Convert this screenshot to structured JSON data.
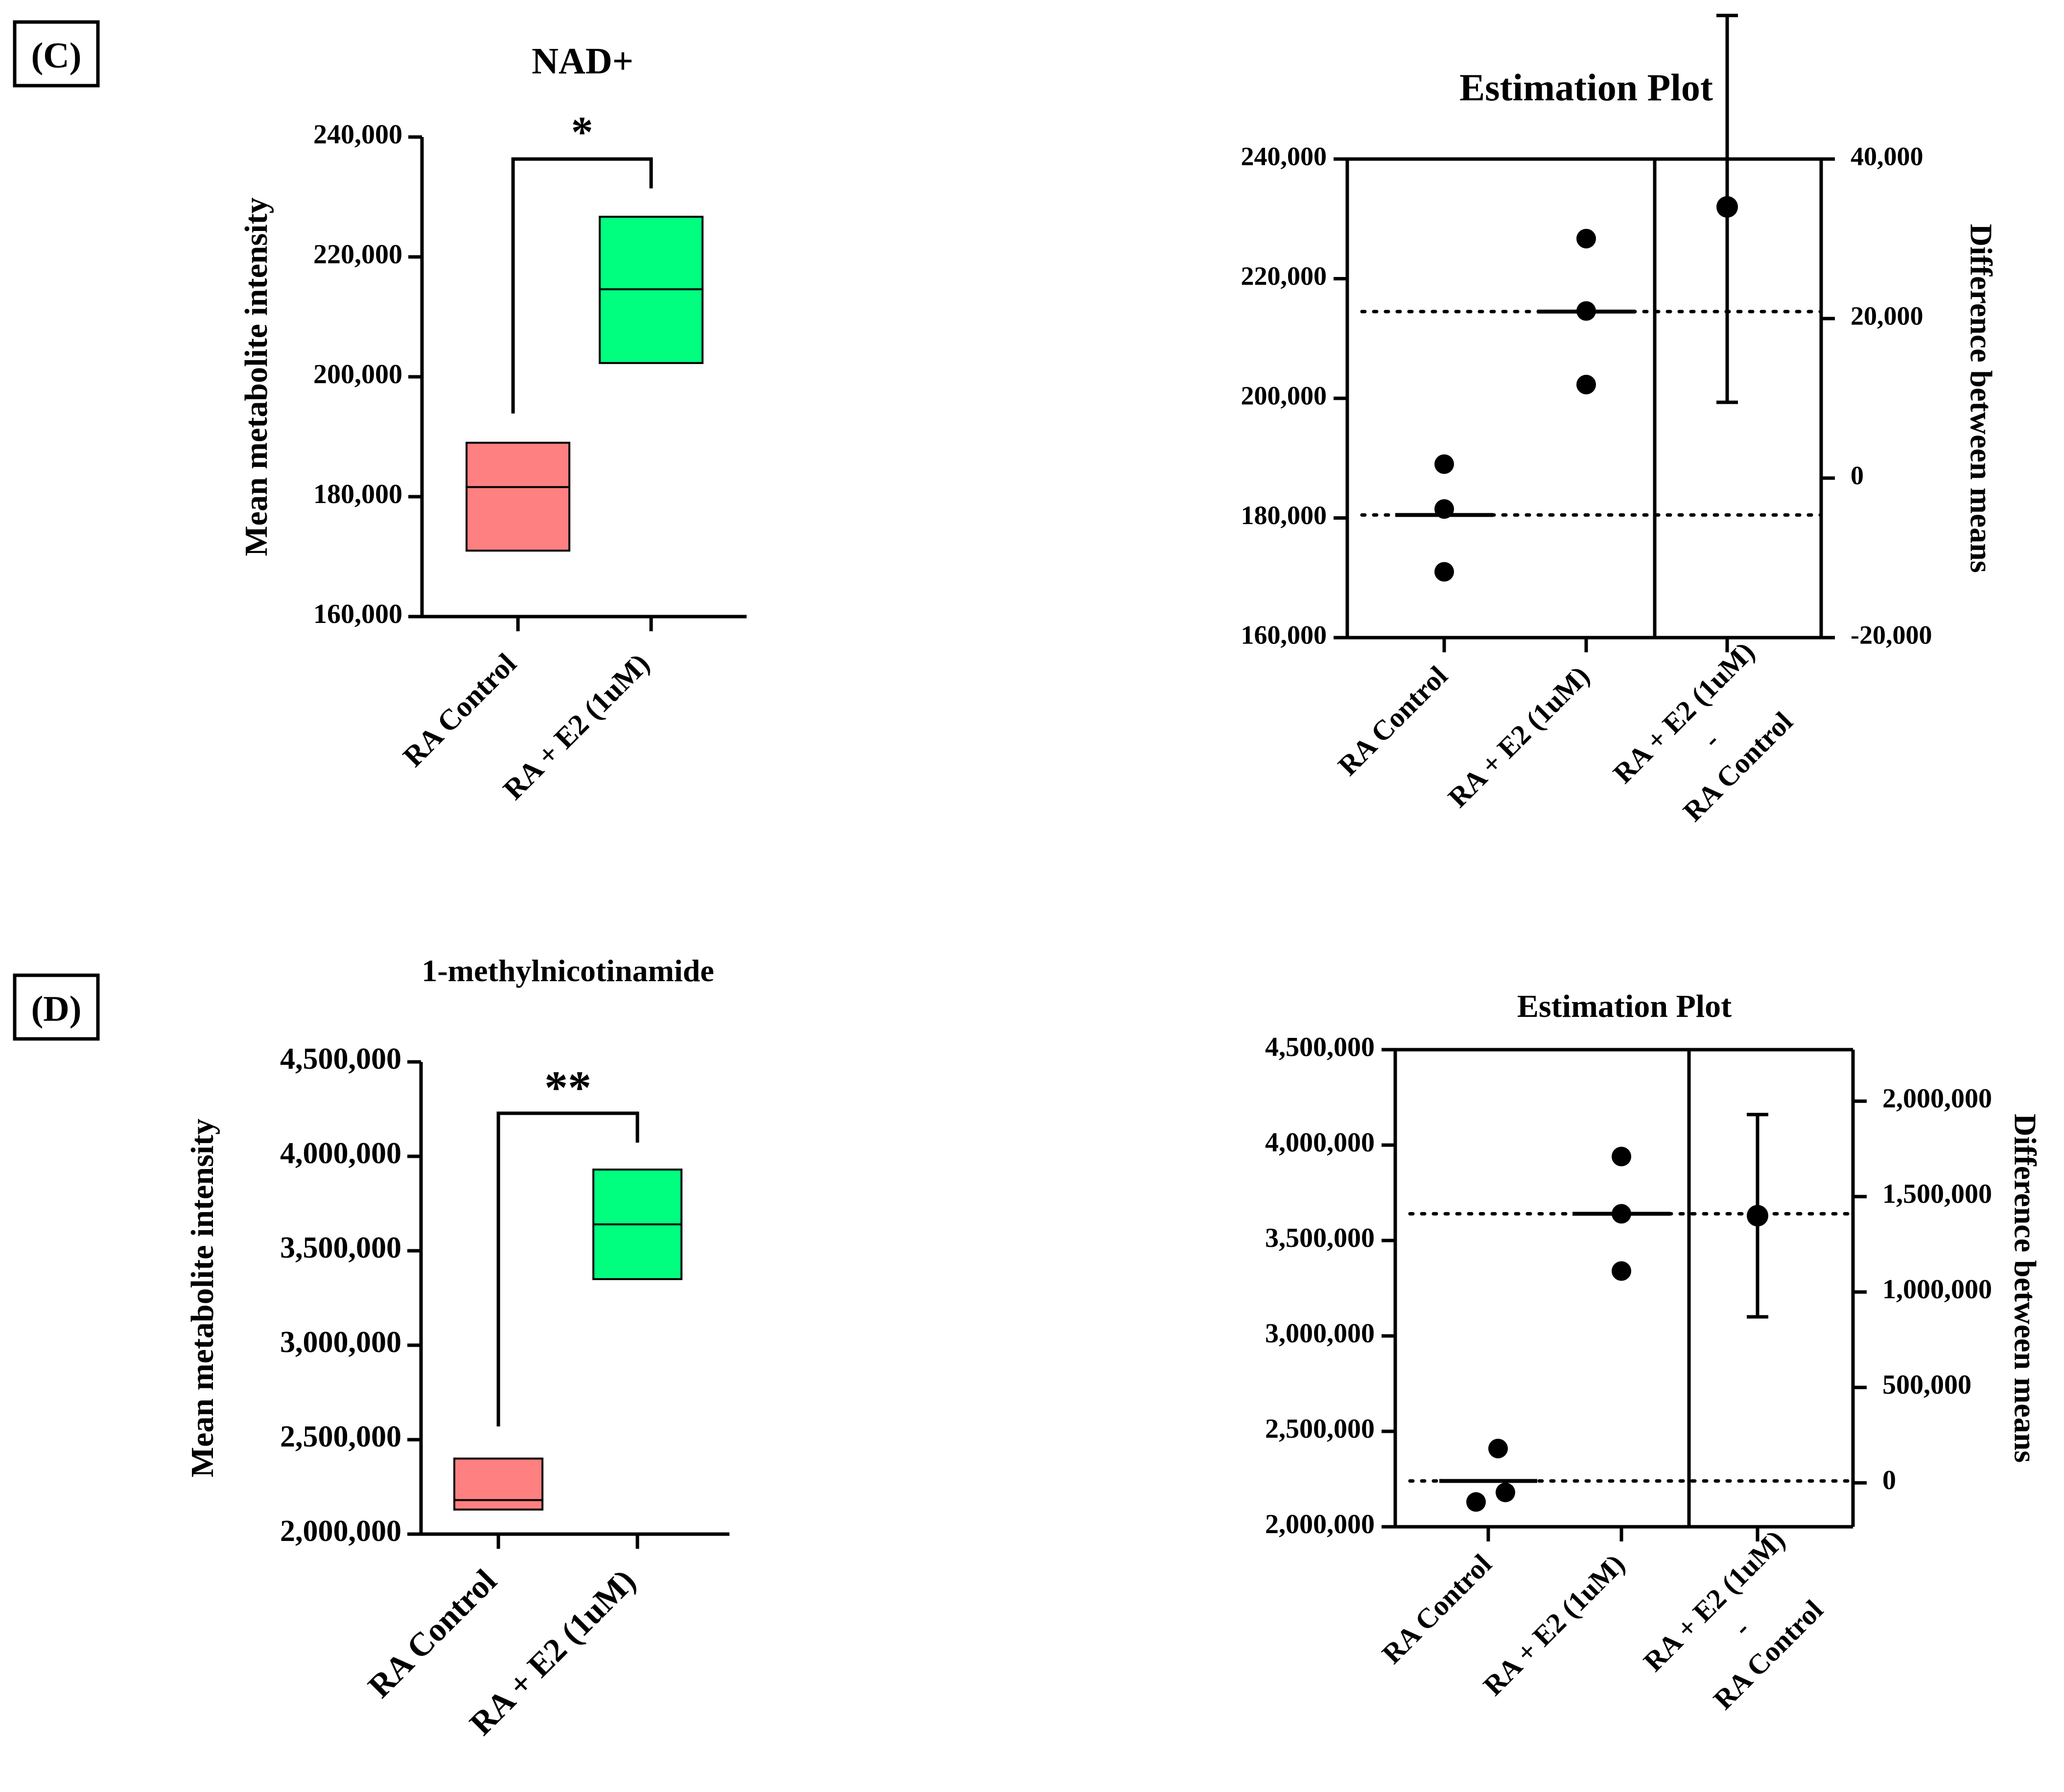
{
  "colors": {
    "control": "#FF8080",
    "treatment": "#00FF7F",
    "ink": "#000000"
  },
  "panels": {
    "c": {
      "label": "(C)"
    },
    "d": {
      "label": "(D)"
    }
  },
  "chart_data": [
    {
      "id": "c-box",
      "type": "box",
      "title": "NAD+",
      "ylabel": "Mean metabolite intensity",
      "ylim": [
        160000,
        240000
      ],
      "ticks": [
        160000,
        180000,
        200000,
        220000,
        240000
      ],
      "tick_labels": [
        "160,000",
        "180,000",
        "200,000",
        "220,000",
        "240,000"
      ],
      "categories": [
        "RA Control",
        "RA + E2 (1uM)"
      ],
      "boxes": [
        {
          "name": "RA Control",
          "min": 171000,
          "median": 181600,
          "max": 189000
        },
        {
          "name": "RA + E2 (1uM)",
          "min": 202300,
          "median": 214600,
          "max": 226700
        }
      ],
      "significance": "*"
    },
    {
      "id": "c-est",
      "type": "scatter",
      "title": "Estimation Plot",
      "ylabel_right": "Difference between means",
      "ylim": [
        160000,
        240000
      ],
      "ticks": [
        160000,
        180000,
        200000,
        220000,
        240000
      ],
      "tick_labels": [
        "160,000",
        "180,000",
        "200,000",
        "220,000",
        "240,000"
      ],
      "ylim_right": [
        -20000,
        40000
      ],
      "ticks_right": [
        -20000,
        0,
        20000,
        40000
      ],
      "tick_labels_right": [
        "-20,000",
        "0",
        "20,000",
        "40,000"
      ],
      "categories": [
        "RA Control",
        "RA + E2 (1uM)",
        "RA + E2 (1uM)\n-\nRA Control"
      ],
      "groups": [
        {
          "name": "RA Control",
          "points": [
            189000,
            181500,
            171000
          ],
          "mean": 180500
        },
        {
          "name": "RA + E2 (1uM)",
          "points": [
            226700,
            214600,
            202300
          ],
          "mean": 214500
        }
      ],
      "difference": {
        "mean": 34000,
        "ci_low": 9500,
        "ci_high": 58000
      }
    },
    {
      "id": "d-box",
      "type": "box",
      "title": "1-methylnicotinamide",
      "ylabel": "Mean metabolite intensity",
      "ylim": [
        2000000,
        4500000
      ],
      "ticks": [
        2000000,
        2500000,
        3000000,
        3500000,
        4000000,
        4500000
      ],
      "tick_labels": [
        "2,000,000",
        "2,500,000",
        "3,000,000",
        "3,500,000",
        "4,000,000",
        "4,500,000"
      ],
      "categories": [
        "RA Control",
        "RA + E2 (1uM)"
      ],
      "boxes": [
        {
          "name": "RA Control",
          "min": 2130000,
          "median": 2180000,
          "max": 2400000
        },
        {
          "name": "RA + E2 (1uM)",
          "min": 3350000,
          "median": 3640000,
          "max": 3930000
        }
      ],
      "significance": "**"
    },
    {
      "id": "d-est",
      "type": "scatter",
      "title": "Estimation Plot",
      "ylabel_right": "Difference between means",
      "ylim": [
        2000000,
        4500000
      ],
      "ticks": [
        2000000,
        2500000,
        3000000,
        3500000,
        4000000,
        4500000
      ],
      "tick_labels": [
        "2,000,000",
        "2,500,000",
        "3,000,000",
        "3,500,000",
        "4,000,000",
        "4,500,000"
      ],
      "ylim_right": [
        -230000,
        2270000
      ],
      "ticks_right": [
        0,
        500000,
        1000000,
        1500000,
        2000000
      ],
      "tick_labels_right": [
        "0",
        "500,000",
        "1,000,000",
        "1,500,000",
        "2,000,000"
      ],
      "categories": [
        "RA Control",
        "RA + E2 (1uM)",
        "RA + E2 (1uM)\n-\nRA Control"
      ],
      "groups": [
        {
          "name": "RA Control",
          "points": [
            2410000,
            2180000,
            2130000
          ],
          "mean": 2240000
        },
        {
          "name": "RA + E2 (1uM)",
          "points": [
            3940000,
            3640000,
            3340000
          ],
          "mean": 3640000
        }
      ],
      "difference": {
        "mean": 1400000,
        "ci_low": 870000,
        "ci_high": 1930000
      }
    }
  ]
}
